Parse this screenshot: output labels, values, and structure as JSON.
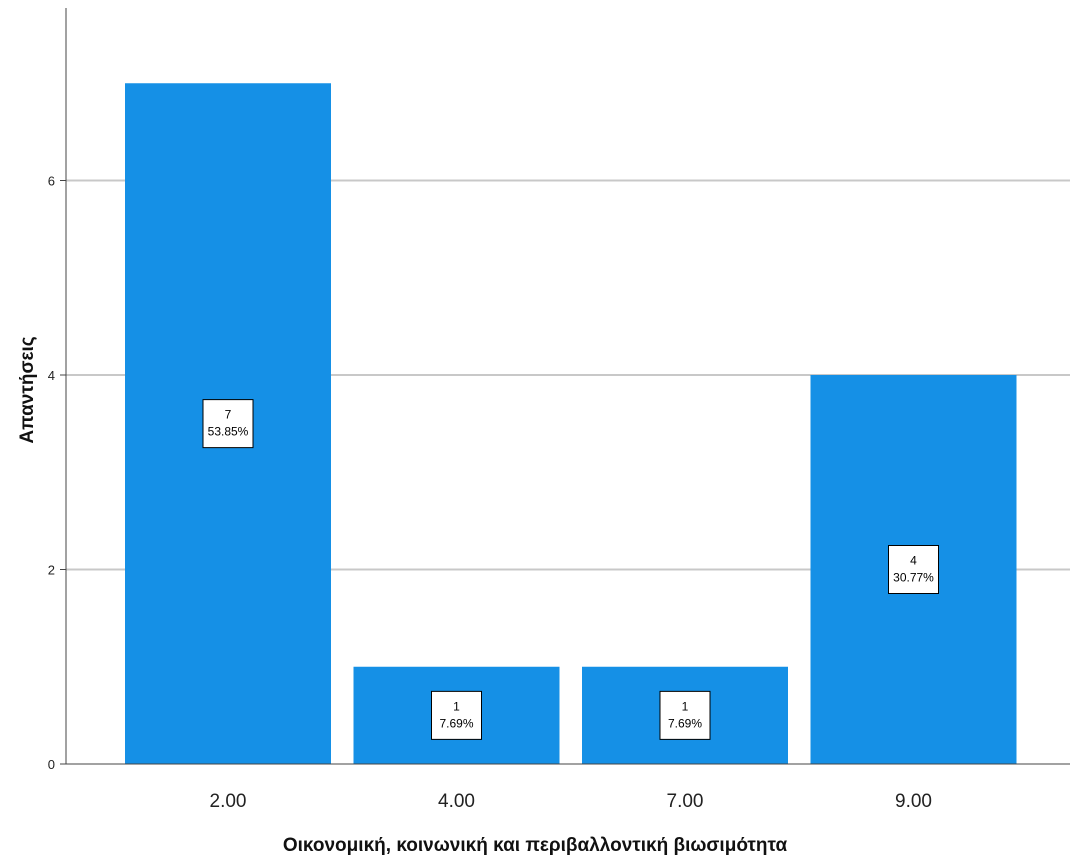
{
  "chart_data": {
    "type": "bar",
    "categories": [
      "2.00",
      "4.00",
      "7.00",
      "9.00"
    ],
    "values": [
      7,
      1,
      1,
      4
    ],
    "percentages": [
      "53.85%",
      "7.69%",
      "7.69%",
      "30.77%"
    ],
    "xlabel": "Οικονομική, κοινωνική και περιβαλλοντική βιωσιμότητα",
    "ylabel": "Απαντήσεις",
    "ylim": [
      0,
      7.6
    ],
    "yticks": [
      0,
      2,
      4,
      6
    ],
    "grid": true,
    "legend": "none",
    "colors": {
      "bar": "#1590e6",
      "grid": "#c8c8c8",
      "axis": "#444444"
    }
  }
}
